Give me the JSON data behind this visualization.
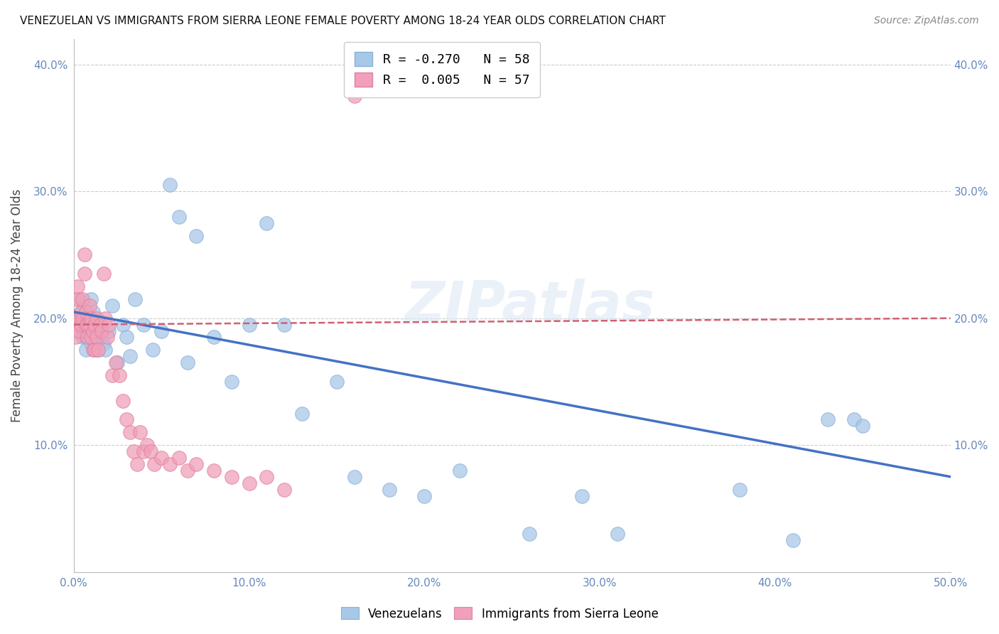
{
  "title": "VENEZUELAN VS IMMIGRANTS FROM SIERRA LEONE FEMALE POVERTY AMONG 18-24 YEAR OLDS CORRELATION CHART",
  "source": "Source: ZipAtlas.com",
  "ylabel_label": "Female Poverty Among 18-24 Year Olds",
  "xlim": [
    0.0,
    0.5
  ],
  "ylim": [
    0.0,
    0.42
  ],
  "xticks": [
    0.0,
    0.1,
    0.2,
    0.3,
    0.4,
    0.5
  ],
  "yticks": [
    0.0,
    0.1,
    0.2,
    0.3,
    0.4
  ],
  "xticklabels": [
    "0.0%",
    "10.0%",
    "20.0%",
    "30.0%",
    "40.0%",
    "50.0%"
  ],
  "yticklabels": [
    "",
    "10.0%",
    "20.0%",
    "30.0%",
    "40.0%"
  ],
  "background_color": "#ffffff",
  "grid_color": "#cccccc",
  "watermark": "ZIPatlas",
  "blue_color": "#a8c8e8",
  "pink_color": "#f0a0b8",
  "blue_line_color": "#4472c4",
  "pink_line_color": "#d06070",
  "venezuleans_label": "Venezuelans",
  "sierra_leone_label": "Immigrants from Sierra Leone",
  "blue_x": [
    0.001,
    0.002,
    0.003,
    0.003,
    0.004,
    0.004,
    0.005,
    0.005,
    0.006,
    0.006,
    0.007,
    0.007,
    0.008,
    0.008,
    0.009,
    0.01,
    0.01,
    0.011,
    0.012,
    0.013,
    0.014,
    0.015,
    0.016,
    0.017,
    0.018,
    0.02,
    0.022,
    0.025,
    0.028,
    0.03,
    0.032,
    0.035,
    0.04,
    0.045,
    0.05,
    0.055,
    0.06,
    0.065,
    0.07,
    0.08,
    0.09,
    0.1,
    0.11,
    0.12,
    0.13,
    0.15,
    0.16,
    0.18,
    0.2,
    0.22,
    0.26,
    0.29,
    0.31,
    0.38,
    0.41,
    0.43,
    0.445,
    0.45
  ],
  "blue_y": [
    0.2,
    0.195,
    0.215,
    0.19,
    0.205,
    0.195,
    0.2,
    0.185,
    0.21,
    0.19,
    0.185,
    0.175,
    0.2,
    0.185,
    0.195,
    0.215,
    0.18,
    0.205,
    0.195,
    0.185,
    0.175,
    0.19,
    0.185,
    0.18,
    0.175,
    0.19,
    0.21,
    0.165,
    0.195,
    0.185,
    0.17,
    0.215,
    0.195,
    0.175,
    0.19,
    0.305,
    0.28,
    0.165,
    0.265,
    0.185,
    0.15,
    0.195,
    0.275,
    0.195,
    0.125,
    0.15,
    0.075,
    0.065,
    0.06,
    0.08,
    0.03,
    0.06,
    0.03,
    0.065,
    0.025,
    0.12,
    0.12,
    0.115
  ],
  "pink_x": [
    0.001,
    0.001,
    0.002,
    0.002,
    0.003,
    0.003,
    0.004,
    0.004,
    0.005,
    0.005,
    0.006,
    0.006,
    0.007,
    0.007,
    0.008,
    0.008,
    0.009,
    0.009,
    0.01,
    0.01,
    0.011,
    0.011,
    0.012,
    0.012,
    0.013,
    0.013,
    0.014,
    0.015,
    0.016,
    0.017,
    0.018,
    0.019,
    0.02,
    0.022,
    0.024,
    0.026,
    0.028,
    0.03,
    0.032,
    0.034,
    0.036,
    0.038,
    0.04,
    0.042,
    0.044,
    0.046,
    0.05,
    0.055,
    0.06,
    0.065,
    0.07,
    0.08,
    0.09,
    0.1,
    0.11,
    0.12,
    0.16
  ],
  "pink_y": [
    0.195,
    0.185,
    0.225,
    0.215,
    0.2,
    0.19,
    0.205,
    0.195,
    0.215,
    0.2,
    0.25,
    0.235,
    0.205,
    0.195,
    0.195,
    0.185,
    0.21,
    0.195,
    0.2,
    0.185,
    0.175,
    0.19,
    0.195,
    0.175,
    0.185,
    0.2,
    0.175,
    0.195,
    0.19,
    0.235,
    0.2,
    0.185,
    0.195,
    0.155,
    0.165,
    0.155,
    0.135,
    0.12,
    0.11,
    0.095,
    0.085,
    0.11,
    0.095,
    0.1,
    0.095,
    0.085,
    0.09,
    0.085,
    0.09,
    0.08,
    0.085,
    0.08,
    0.075,
    0.07,
    0.075,
    0.065,
    0.375
  ],
  "blue_trend_x": [
    0.0,
    0.5
  ],
  "blue_trend_y": [
    0.205,
    0.075
  ],
  "pink_trend_x": [
    0.0,
    0.5
  ],
  "pink_trend_y": [
    0.195,
    0.2
  ]
}
